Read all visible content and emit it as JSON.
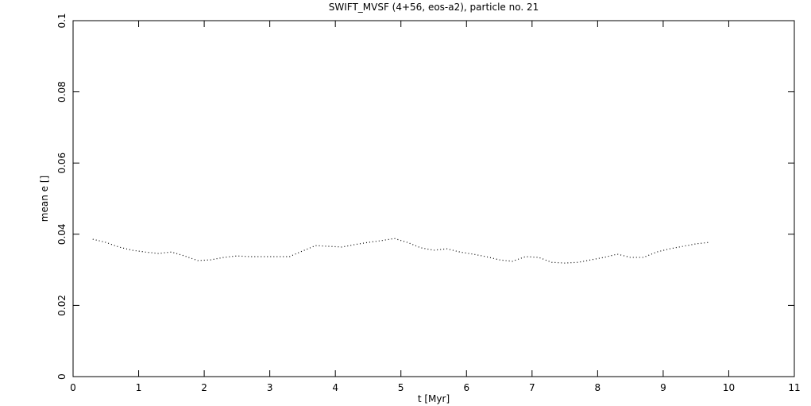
{
  "chart_data": {
    "type": "line",
    "title": "SWIFT_MVSF (4+56, eos-a2), particle no. 21",
    "x_label": "t [Myr]",
    "y_label": "mean e []",
    "xlim": [
      0,
      11
    ],
    "ylim": [
      0,
      0.1
    ],
    "xticks": [
      0,
      1,
      2,
      3,
      4,
      5,
      6,
      7,
      8,
      9,
      10,
      11
    ],
    "yticks": [
      0,
      0.02,
      0.04,
      0.06,
      0.08,
      0.1
    ],
    "x": [
      0.3,
      0.5,
      0.7,
      0.9,
      1.1,
      1.3,
      1.5,
      1.7,
      1.9,
      2.1,
      2.3,
      2.5,
      2.7,
      2.9,
      3.1,
      3.3,
      3.5,
      3.7,
      3.9,
      4.1,
      4.3,
      4.5,
      4.7,
      4.9,
      5.1,
      5.3,
      5.5,
      5.7,
      5.9,
      6.1,
      6.3,
      6.5,
      6.7,
      6.9,
      7.1,
      7.3,
      7.5,
      7.7,
      7.9,
      8.1,
      8.3,
      8.5,
      8.7,
      8.9,
      9.1,
      9.3,
      9.5,
      9.7
    ],
    "series": [
      {
        "name": "mean e",
        "color": "#000000",
        "values": [
          0.0386,
          0.0377,
          0.0364,
          0.0355,
          0.035,
          0.0346,
          0.035,
          0.0339,
          0.0326,
          0.0328,
          0.0335,
          0.0339,
          0.0337,
          0.0337,
          0.0337,
          0.0337,
          0.0353,
          0.0368,
          0.0366,
          0.0364,
          0.0371,
          0.0377,
          0.0382,
          0.0388,
          0.0377,
          0.0362,
          0.0355,
          0.0359,
          0.035,
          0.0344,
          0.0337,
          0.0328,
          0.0324,
          0.0337,
          0.0335,
          0.0321,
          0.0319,
          0.0321,
          0.0328,
          0.0335,
          0.0344,
          0.0335,
          0.0335,
          0.035,
          0.0359,
          0.0366,
          0.0373,
          0.0377
        ]
      }
    ]
  }
}
